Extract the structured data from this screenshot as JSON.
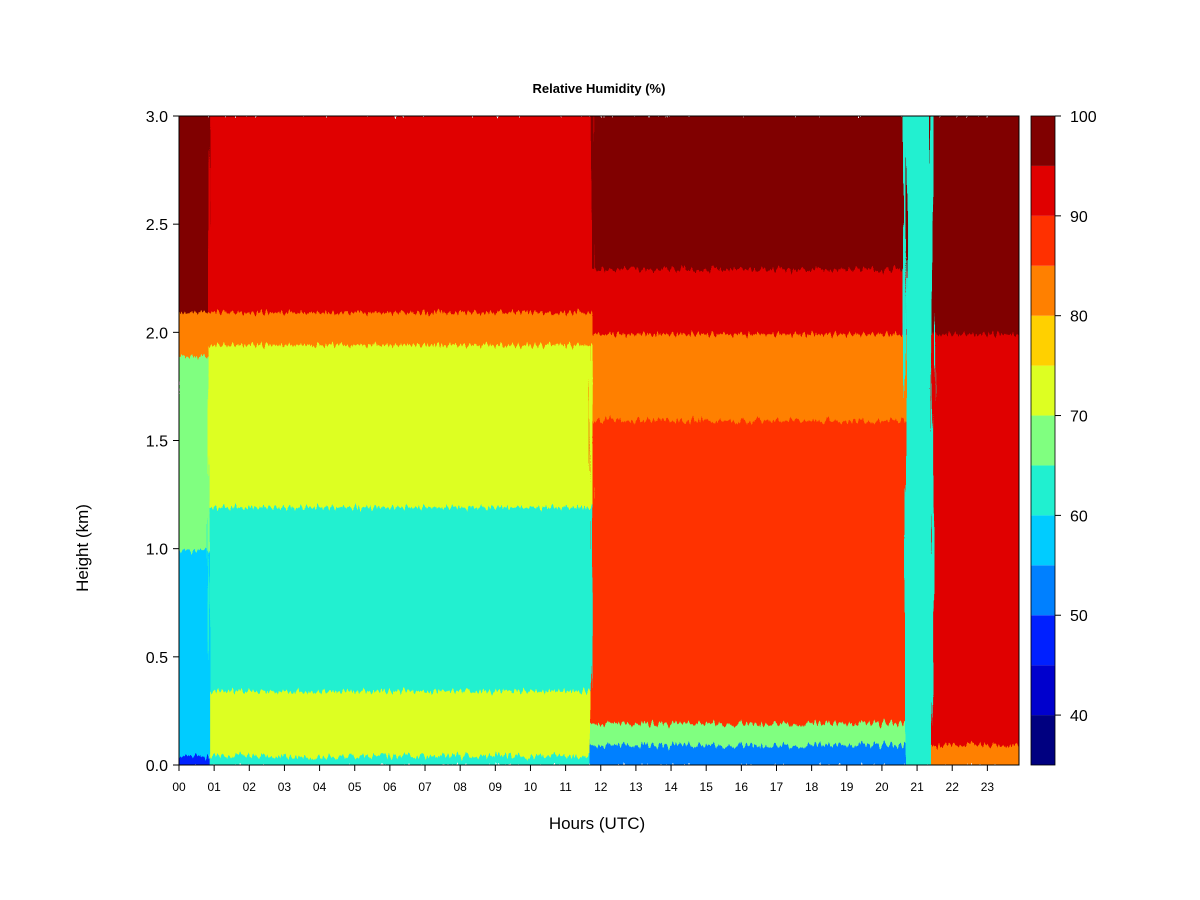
{
  "chart_data": {
    "type": "heatmap",
    "title": "Relative Humidity (%)",
    "xlabel": "Hours (UTC)",
    "ylabel": "Height (km)",
    "xlim": [
      0,
      23.9
    ],
    "ylim": [
      0.0,
      3.0
    ],
    "x_ticks": [
      "00",
      "01",
      "02",
      "03",
      "04",
      "05",
      "06",
      "07",
      "08",
      "09",
      "10",
      "11",
      "12",
      "13",
      "14",
      "15",
      "16",
      "17",
      "18",
      "19",
      "20",
      "21",
      "22",
      "23"
    ],
    "y_ticks": [
      "0.0",
      "0.5",
      "1.0",
      "1.5",
      "2.0",
      "2.5",
      "3.0"
    ],
    "colorbar": {
      "min": 35,
      "max": 100,
      "ticks": [
        "40",
        "50",
        "60",
        "70",
        "80",
        "90",
        "100"
      ],
      "bins": [
        {
          "from": 35,
          "to": 40,
          "color": "#000080"
        },
        {
          "from": 40,
          "to": 45,
          "color": "#0000CD"
        },
        {
          "from": 45,
          "to": 50,
          "color": "#0020FF"
        },
        {
          "from": 50,
          "to": 55,
          "color": "#0080FF"
        },
        {
          "from": 55,
          "to": 60,
          "color": "#00CCFF"
        },
        {
          "from": 60,
          "to": 65,
          "color": "#20F0D0"
        },
        {
          "from": 65,
          "to": 70,
          "color": "#80FF80"
        },
        {
          "from": 70,
          "to": 75,
          "color": "#DDFF22"
        },
        {
          "from": 75,
          "to": 80,
          "color": "#FFD000"
        },
        {
          "from": 80,
          "to": 85,
          "color": "#FF8000"
        },
        {
          "from": 85,
          "to": 90,
          "color": "#FF3000"
        },
        {
          "from": 90,
          "to": 95,
          "color": "#E00000"
        },
        {
          "from": 95,
          "to": 100,
          "color": "#800000"
        }
      ]
    },
    "series": [
      {
        "x": [
          0,
          0.8
        ],
        "y_values": [
          {
            "height": [
              0.0,
              0.05
            ],
            "rh": 45
          },
          {
            "height": [
              0.05,
              1.0
            ],
            "rh": 55
          },
          {
            "height": [
              1.0,
              1.9
            ],
            "rh": 65
          },
          {
            "height": [
              1.9,
              2.1
            ],
            "rh": 82
          },
          {
            "height": [
              2.1,
              3.0
            ],
            "rh": 96
          }
        ]
      },
      {
        "x": [
          0.9,
          11.7
        ],
        "y_values": [
          {
            "height": [
              0.0,
              0.05
            ],
            "rh": 60
          },
          {
            "height": [
              0.05,
              0.35
            ],
            "rh": 74
          },
          {
            "height": [
              0.35,
              1.2
            ],
            "rh": 60
          },
          {
            "height": [
              1.2,
              1.95
            ],
            "rh": 70
          },
          {
            "height": [
              1.95,
              2.1
            ],
            "rh": 83
          },
          {
            "height": [
              2.1,
              3.0
            ],
            "rh": 91
          }
        ]
      },
      {
        "x": [
          11.8,
          20.6
        ],
        "y_values": [
          {
            "height": [
              0.0,
              0.1
            ],
            "rh": 50
          },
          {
            "height": [
              0.1,
              0.2
            ],
            "rh": 65
          },
          {
            "height": [
              0.2,
              1.6
            ],
            "rh": 88
          },
          {
            "height": [
              1.6,
              2.0
            ],
            "rh": 82
          },
          {
            "height": [
              2.0,
              2.3
            ],
            "rh": 92
          },
          {
            "height": [
              2.3,
              3.0
            ],
            "rh": 97
          }
        ]
      },
      {
        "x": [
          20.7,
          21.4
        ],
        "y_values": [
          {
            "height": [
              0.0,
              3.0
            ],
            "rh": 60
          }
        ]
      },
      {
        "x": [
          21.5,
          23.9
        ],
        "y_values": [
          {
            "height": [
              0.0,
              0.1
            ],
            "rh": 80
          },
          {
            "height": [
              0.1,
              2.0
            ],
            "rh": 92
          },
          {
            "height": [
              2.0,
              3.0
            ],
            "rh": 97
          }
        ]
      }
    ]
  }
}
